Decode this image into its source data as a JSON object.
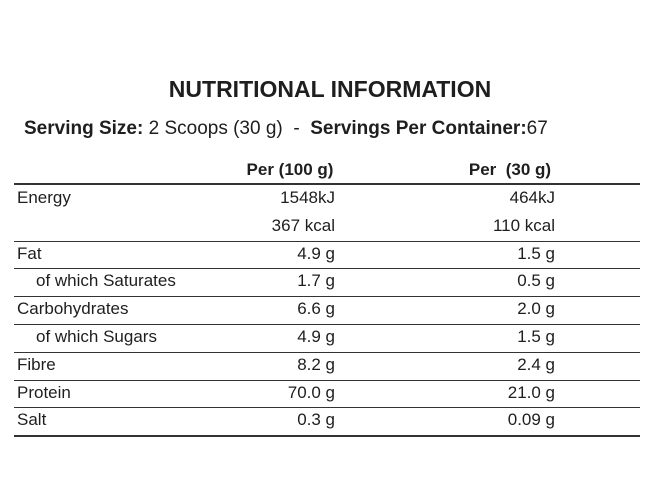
{
  "header": {
    "title": "NUTRITIONAL INFORMATION",
    "serving_size_label": "Serving Size:",
    "serving_size": "2 Scoops (30 g)",
    "separator": "-",
    "servings_label": "Servings Per Container:",
    "servings": "67"
  },
  "table": {
    "columns": [
      "Per (100 g)",
      "Per  (30 g)"
    ],
    "rows": [
      {
        "label": "Energy",
        "per100": "1548kJ",
        "per30": "464kJ"
      },
      {
        "per100": "367 kcal",
        "per30": "110 kcal"
      },
      {
        "label": "Fat",
        "per100": "4.9 g",
        "per30": "1.5 g"
      },
      {
        "label": "of which Saturates",
        "indent": true,
        "per100": "1.7 g",
        "per30": "0.5 g"
      },
      {
        "label": "Carbohydrates",
        "per100": "6.6 g",
        "per30": "2.0 g"
      },
      {
        "label": "of which Sugars",
        "indent": true,
        "per100": "4.9 g",
        "per30": "1.5 g"
      },
      {
        "label": "Fibre",
        "per100": "8.2 g",
        "per30": "2.4 g"
      },
      {
        "label": "Protein",
        "per100": "70.0 g",
        "per30": "21.0 g"
      },
      {
        "label": "Salt",
        "per100": "0.3 g",
        "per30": "0.09 g"
      }
    ]
  }
}
